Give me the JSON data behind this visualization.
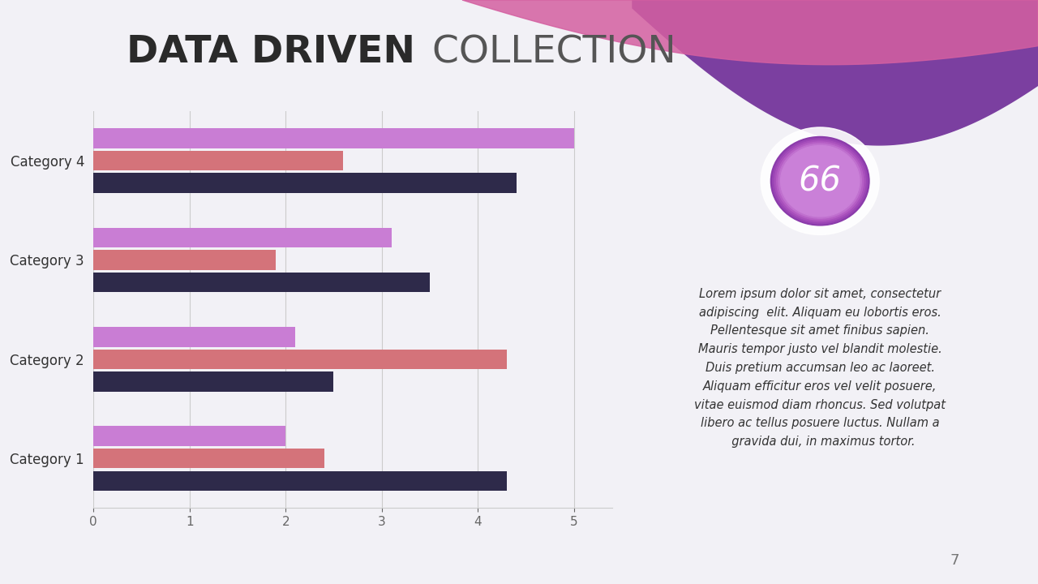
{
  "title_bold": "DATA DRIVEN",
  "title_light": " COLLECTION",
  "categories": [
    "Category 4",
    "Category 3",
    "Category 2",
    "Category 1"
  ],
  "series_purple": [
    5.0,
    3.1,
    2.1,
    2.0
  ],
  "series_pink": [
    2.6,
    1.9,
    4.3,
    2.4
  ],
  "series_navy": [
    4.4,
    3.5,
    2.5,
    4.3
  ],
  "color_purple": "#C97DD4",
  "color_pink": "#D4737A",
  "color_navy": "#2E2A4A",
  "xlim": [
    0,
    5.4
  ],
  "xticks": [
    0,
    1,
    2,
    3,
    4,
    5
  ],
  "background_color": "#F2F1F6",
  "circle_number": "66",
  "lorem_text": "Lorem ipsum dolor sit amet, consectetur\nadipiscing  elit. Aliquam eu lobortis eros.\nPellentesque sit amet finibus sapien.\nMauris tempor justo vel blandit molestie.\nDuis pretium accumsan leo ac laoreet.\nAliquam efficitur eros vel velit posuere,\nvitae euismod diam rhoncus. Sed volutpat\nlibero ac tellus posuere luctus. Nullam a\n  gravida dui, in maximus tortor.",
  "page_number": "7",
  "bar_height": 0.2,
  "bar_gap": 0.025
}
